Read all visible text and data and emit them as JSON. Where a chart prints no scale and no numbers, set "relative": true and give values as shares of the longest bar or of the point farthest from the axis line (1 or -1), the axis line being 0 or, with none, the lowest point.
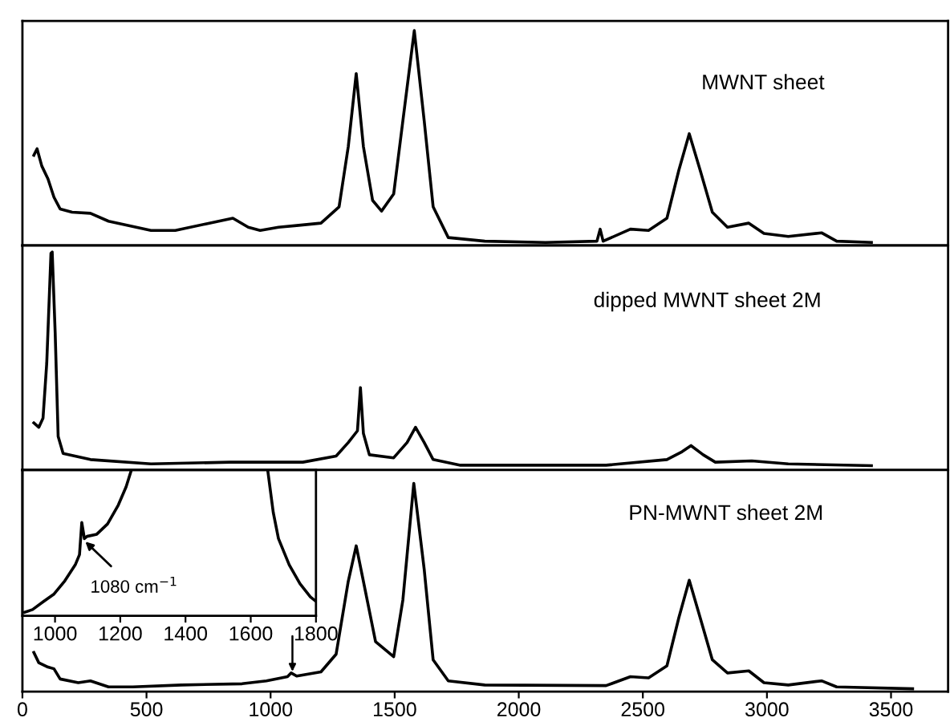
{
  "chart_data": [
    {
      "type": "line",
      "relative": true,
      "xlim": [
        0,
        3730
      ],
      "tick_labels": false,
      "x": [
        46,
        59,
        78,
        103,
        127,
        152,
        200,
        274,
        347,
        518,
        616,
        738,
        848,
        910,
        958,
        1032,
        1105,
        1203,
        1276,
        1313,
        1345,
        1374,
        1411,
        1447,
        1496,
        1533,
        1579,
        1619,
        1655,
        1716,
        1863,
        2108,
        2315,
        2328,
        2340,
        2450,
        2523,
        2597,
        2645,
        2687,
        2731,
        2780,
        2841,
        2927,
        2988,
        3086,
        3220,
        3281,
        3421
      ],
      "series": [
        {
          "name": "MWNT sheet",
          "color": "#000000",
          "values": [
            0.42,
            0.45,
            0.37,
            0.31,
            0.225,
            0.17,
            0.155,
            0.15,
            0.113,
            0.07,
            0.07,
            0.1,
            0.127,
            0.085,
            0.07,
            0.085,
            0.093,
            0.104,
            0.18,
            0.46,
            0.8,
            0.46,
            0.21,
            0.16,
            0.24,
            0.58,
            1.0,
            0.58,
            0.18,
            0.037,
            0.02,
            0.014,
            0.02,
            0.076,
            0.02,
            0.076,
            0.07,
            0.127,
            0.35,
            0.52,
            0.35,
            0.155,
            0.085,
            0.104,
            0.056,
            0.042,
            0.059,
            0.02,
            0.014
          ]
        }
      ]
    },
    {
      "type": "line",
      "relative": true,
      "xlim": [
        0,
        3730
      ],
      "tick_labels": false,
      "x": [
        46,
        66,
        83,
        98,
        115,
        120,
        132,
        144,
        164,
        274,
        518,
        836,
        1130,
        1264,
        1313,
        1350,
        1362,
        1374,
        1398,
        1496,
        1550,
        1584,
        1619,
        1655,
        1765,
        2352,
        2597,
        2658,
        2694,
        2743,
        2792,
        2939,
        3086,
        3421
      ],
      "series": [
        {
          "name": "dipped MWNT sheet 2M",
          "color": "#000000",
          "values": [
            0.216,
            0.196,
            0.238,
            0.49,
            0.994,
            1.0,
            0.63,
            0.154,
            0.076,
            0.048,
            0.028,
            0.036,
            0.036,
            0.064,
            0.126,
            0.18,
            0.378,
            0.168,
            0.07,
            0.056,
            0.126,
            0.196,
            0.126,
            0.048,
            0.022,
            0.022,
            0.048,
            0.084,
            0.112,
            0.07,
            0.036,
            0.042,
            0.028,
            0.02
          ]
        }
      ]
    },
    {
      "type": "line",
      "relative": true,
      "xlim": [
        0,
        3730
      ],
      "tick_labels": "x",
      "xticks": [
        0,
        500,
        1000,
        1500,
        2000,
        2500,
        3000,
        3500
      ],
      "x": [
        46,
        66,
        103,
        127,
        152,
        225,
        274,
        347,
        445,
        641,
        885,
        983,
        1068,
        1083,
        1105,
        1203,
        1264,
        1313,
        1345,
        1374,
        1423,
        1496,
        1533,
        1577,
        1619,
        1655,
        1716,
        1863,
        2352,
        2450,
        2523,
        2597,
        2645,
        2687,
        2731,
        2780,
        2841,
        2927,
        2988,
        3086,
        3220,
        3281,
        3587
      ],
      "series": [
        {
          "name": "PN-MWNT sheet 2M",
          "color": "#000000",
          "values": [
            0.188,
            0.139,
            0.118,
            0.11,
            0.061,
            0.043,
            0.052,
            0.023,
            0.023,
            0.032,
            0.038,
            0.052,
            0.072,
            0.09,
            0.075,
            0.095,
            0.18,
            0.53,
            0.7,
            0.53,
            0.24,
            0.168,
            0.44,
            1.0,
            0.587,
            0.153,
            0.052,
            0.032,
            0.029,
            0.072,
            0.066,
            0.124,
            0.355,
            0.535,
            0.355,
            0.153,
            0.09,
            0.1,
            0.043,
            0.032,
            0.052,
            0.023,
            0.014
          ]
        }
      ]
    },
    {
      "type": "line",
      "relative": true,
      "xlim": [
        900,
        1800
      ],
      "tick_labels": "x",
      "xticks": [
        1000,
        1200,
        1400,
        1600,
        1800
      ],
      "annotations": [
        {
          "text": "1080 cm$^{−1}$",
          "x": 1088,
          "y": 0.52
        }
      ],
      "x": [
        907,
        931,
        964,
        997,
        1030,
        1062,
        1075,
        1082,
        1090,
        1098,
        1128,
        1161,
        1194,
        1218,
        1234,
        1440,
        1652,
        1669,
        1685,
        1718,
        1751,
        1783,
        1800
      ],
      "series": [
        {
          "color": "#000000",
          "values": [
            0.025,
            0.043,
            0.097,
            0.15,
            0.24,
            0.35,
            0.42,
            0.64,
            0.53,
            0.545,
            0.56,
            0.63,
            0.76,
            0.885,
            1.0,
            null,
            1.0,
            0.71,
            0.53,
            0.35,
            0.22,
            0.13,
            0.1
          ]
        }
      ]
    }
  ]
}
